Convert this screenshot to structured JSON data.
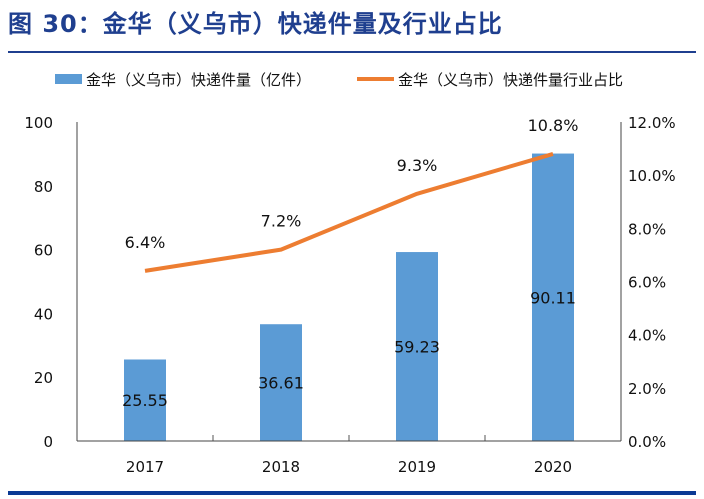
{
  "title": "图 30：金华（义乌市）快递件量及行业占比",
  "colors": {
    "bar": "#5b9bd5",
    "line": "#ed7d31",
    "title": "#1f3f8f"
  },
  "chart_data": {
    "type": "bar+line",
    "categories": [
      "2017",
      "2018",
      "2019",
      "2020"
    ],
    "series": [
      {
        "name": "金华（义乌市）快递件量（亿件）",
        "type": "bar",
        "axis": "left",
        "values": [
          25.55,
          36.61,
          59.23,
          90.11
        ],
        "labels": [
          "25.55",
          "36.61",
          "59.23",
          "90.11"
        ]
      },
      {
        "name": "金华（义乌市）快递件量行业占比",
        "type": "line",
        "axis": "right",
        "values": [
          6.4,
          7.2,
          9.3,
          10.8
        ],
        "labels": [
          "6.4%",
          "7.2%",
          "9.3%",
          "10.8%"
        ]
      }
    ],
    "y_left": {
      "range": [
        0,
        100
      ],
      "ticks": [
        "0",
        "20",
        "40",
        "60",
        "80",
        "100"
      ]
    },
    "y_right": {
      "range": [
        0,
        12
      ],
      "ticks": [
        "0.0%",
        "2.0%",
        "4.0%",
        "6.0%",
        "8.0%",
        "10.0%",
        "12.0%"
      ]
    },
    "legend": {
      "placement": "top",
      "items": [
        "金华（义乌市）快递件量（亿件）",
        "金华（义乌市）快递件量行业占比"
      ]
    },
    "grid": false
  }
}
